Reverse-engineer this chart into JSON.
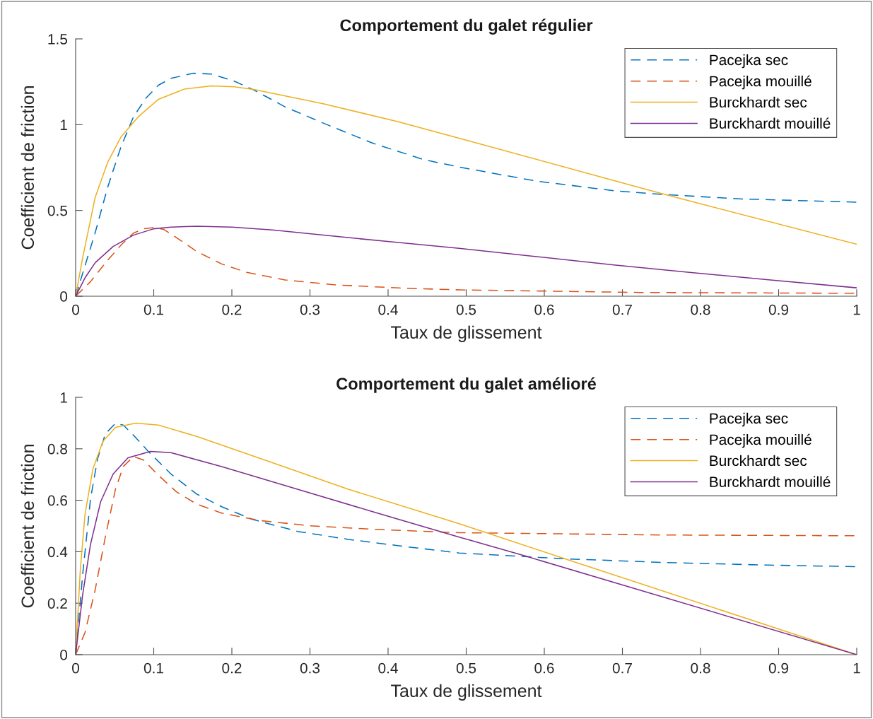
{
  "chart_data": [
    {
      "type": "line",
      "title": "Comportement du galet régulier",
      "xlabel": "Taux de glissement",
      "ylabel": "Coefficient de friction",
      "xlim": [
        0,
        1
      ],
      "ylim": [
        0,
        1.5
      ],
      "xticks": [
        0,
        0.1,
        0.2,
        0.3,
        0.4,
        0.5,
        0.6,
        0.7,
        0.8,
        0.9,
        1
      ],
      "yticks": [
        0,
        0.5,
        1,
        1.5
      ],
      "grid": false,
      "legend": "top right",
      "marker": "none",
      "series": [
        {
          "name": "Pacejka sec",
          "color": "#0072bd",
          "line_style": "dashed",
          "x": [
            0,
            0.025,
            0.041,
            0.058,
            0.074,
            0.09,
            0.106,
            0.122,
            0.151,
            0.174,
            0.203,
            0.229,
            0.268,
            0.317,
            0.381,
            0.446,
            0.491,
            0.59,
            0.689,
            0.755,
            0.854,
            1
          ],
          "values": [
            0,
            0.37,
            0.635,
            0.87,
            1.045,
            1.155,
            1.23,
            1.27,
            1.3,
            1.295,
            1.254,
            1.2,
            1.104,
            1.009,
            0.891,
            0.796,
            0.753,
            0.671,
            0.615,
            0.592,
            0.567,
            0.548
          ]
        },
        {
          "name": "Pacejka mouillé",
          "color": "#d95319",
          "line_style": "dashed",
          "x": [
            0,
            0.019,
            0.041,
            0.058,
            0.074,
            0.087,
            0.1,
            0.113,
            0.129,
            0.155,
            0.187,
            0.219,
            0.268,
            0.333,
            0.414,
            0.491,
            0.722,
            1
          ],
          "values": [
            0,
            0.085,
            0.21,
            0.298,
            0.368,
            0.393,
            0.4,
            0.389,
            0.342,
            0.261,
            0.188,
            0.139,
            0.095,
            0.066,
            0.048,
            0.037,
            0.022,
            0.017
          ]
        },
        {
          "name": "Burckhardt sec",
          "color": "#edb120",
          "line_style": "solid",
          "x": [
            0,
            0.009,
            0.025,
            0.041,
            0.058,
            0.08,
            0.106,
            0.139,
            0.174,
            0.203,
            0.229,
            0.317,
            0.414,
            0.5,
            0.755,
            1
          ],
          "values": [
            0,
            0.224,
            0.576,
            0.78,
            0.928,
            1.045,
            1.148,
            1.207,
            1.226,
            1.221,
            1.204,
            1.122,
            1.016,
            0.91,
            0.592,
            0.303
          ]
        },
        {
          "name": "Burckhardt mouillé",
          "color": "#7e2f8e",
          "line_style": "solid",
          "x": [
            0,
            0.012,
            0.025,
            0.048,
            0.074,
            0.1,
            0.122,
            0.155,
            0.2,
            0.252,
            0.317,
            0.397,
            0.491,
            0.59,
            0.689,
            0.788,
            0.887,
            1
          ],
          "values": [
            0,
            0.107,
            0.195,
            0.29,
            0.356,
            0.393,
            0.403,
            0.408,
            0.403,
            0.386,
            0.356,
            0.32,
            0.279,
            0.231,
            0.182,
            0.138,
            0.096,
            0.049
          ]
        }
      ]
    },
    {
      "type": "line",
      "title": "Comportement du galet amélioré",
      "xlabel": "Taux de glissement",
      "ylabel": "Coefficient de friction",
      "xlim": [
        0,
        1
      ],
      "ylim": [
        0,
        1
      ],
      "xticks": [
        0,
        0.1,
        0.2,
        0.3,
        0.4,
        0.5,
        0.6,
        0.7,
        0.8,
        0.9,
        1
      ],
      "yticks": [
        0,
        0.2,
        0.4,
        0.6,
        0.8,
        1
      ],
      "grid": false,
      "legend": "top right",
      "marker": "none",
      "series": [
        {
          "name": "Pacejka sec",
          "color": "#0072bd",
          "line_style": "dashed",
          "x": [
            0,
            0.009,
            0.019,
            0.028,
            0.038,
            0.051,
            0.061,
            0.074,
            0.093,
            0.122,
            0.155,
            0.187,
            0.226,
            0.284,
            0.349,
            0.414,
            0.491,
            0.623,
            0.755,
            0.887,
            1
          ],
          "values": [
            0,
            0.311,
            0.604,
            0.76,
            0.858,
            0.899,
            0.892,
            0.853,
            0.79,
            0.702,
            0.624,
            0.575,
            0.526,
            0.479,
            0.448,
            0.423,
            0.395,
            0.373,
            0.358,
            0.348,
            0.342
          ]
        },
        {
          "name": "Pacejka mouillé",
          "color": "#d95319",
          "line_style": "dashed",
          "x": [
            0,
            0.012,
            0.025,
            0.038,
            0.051,
            0.061,
            0.074,
            0.087,
            0.106,
            0.129,
            0.155,
            0.187,
            0.236,
            0.3,
            0.381,
            0.491,
            0.755,
            1
          ],
          "values": [
            0,
            0.086,
            0.252,
            0.457,
            0.643,
            0.731,
            0.77,
            0.756,
            0.697,
            0.633,
            0.585,
            0.55,
            0.521,
            0.501,
            0.487,
            0.474,
            0.465,
            0.462
          ]
        },
        {
          "name": "Burckhardt sec",
          "color": "#edb120",
          "line_style": "solid",
          "x": [
            0,
            0.006,
            0.012,
            0.022,
            0.035,
            0.051,
            0.077,
            0.106,
            0.155,
            0.252,
            0.349,
            0.491,
            0.626,
            1
          ],
          "values": [
            0,
            0.33,
            0.545,
            0.721,
            0.829,
            0.883,
            0.9,
            0.892,
            0.848,
            0.746,
            0.643,
            0.509,
            0.373,
            0
          ]
        },
        {
          "name": "Burckhardt mouillé",
          "color": "#7e2f8e",
          "line_style": "solid",
          "x": [
            0,
            0.009,
            0.019,
            0.032,
            0.048,
            0.067,
            0.096,
            0.122,
            0.187,
            0.284,
            0.381,
            0.491,
            0.576,
            1
          ],
          "values": [
            0,
            0.233,
            0.428,
            0.594,
            0.702,
            0.765,
            0.79,
            0.785,
            0.731,
            0.643,
            0.555,
            0.457,
            0.383,
            0
          ]
        }
      ]
    }
  ]
}
